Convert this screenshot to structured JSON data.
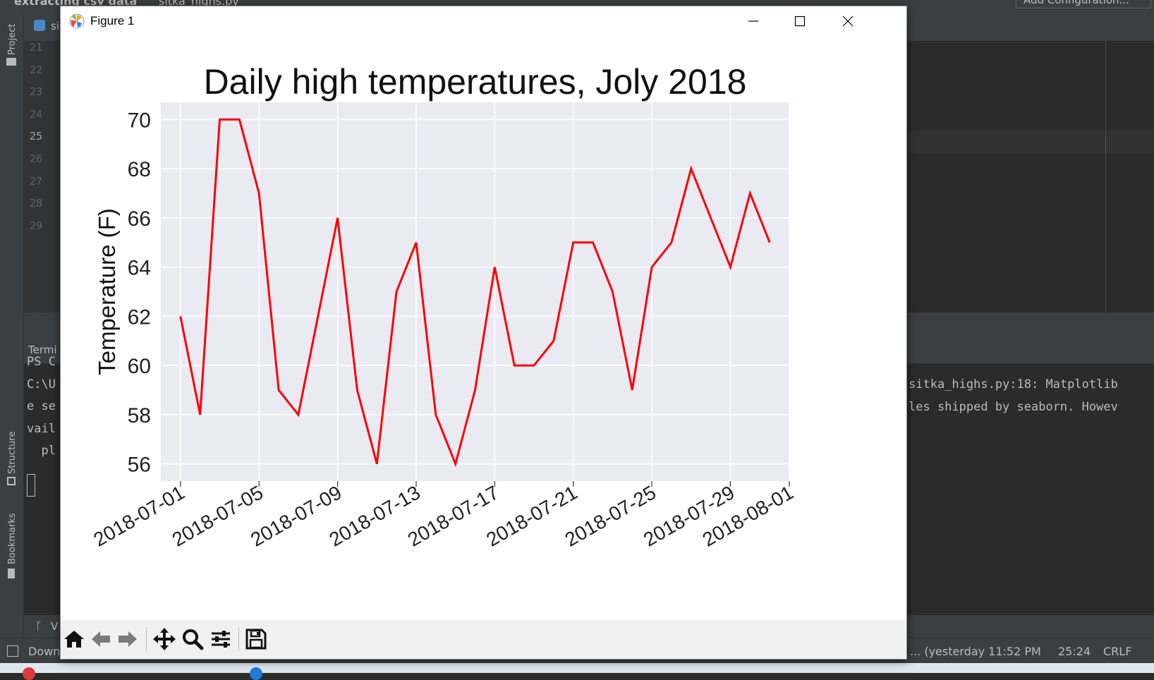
{
  "ide": {
    "breadcrumb_project": "extracting csv data",
    "breadcrumb_file": "sitka_highs.py",
    "run_config": "Add Configuration...",
    "tab_fragment": "si",
    "sidebar_project": "Project",
    "sidebar_structure": "Structure",
    "sidebar_bookmarks": "Bookmarks",
    "line_numbers": [
      "21",
      "22",
      "23",
      "24",
      "25",
      "26",
      "27",
      "28",
      "29"
    ],
    "terminal_tab": "Termi",
    "terminal_lines_left": [
      "PS C",
      "C:\\U",
      "e se",
      "vail",
      "  pl"
    ],
    "terminal_lines_right": [
      "sitka_highs.py:18: Matplotlib",
      "les shipped by seaborn. Howev"
    ],
    "bottom_tab_fragment": "V",
    "status_left": "Down",
    "status_commit": "... (yesterday 11:52 PM",
    "status_position": "25:24",
    "status_line_ending": "CRLF"
  },
  "window": {
    "title": "Figure 1"
  },
  "chart_data": {
    "type": "line",
    "title": "Daily high temperatures, Joly 2018",
    "xlabel": "",
    "ylabel": "Temperature (F)",
    "x": [
      "2018-07-01",
      "2018-07-02",
      "2018-07-03",
      "2018-07-04",
      "2018-07-05",
      "2018-07-06",
      "2018-07-07",
      "2018-07-08",
      "2018-07-09",
      "2018-07-10",
      "2018-07-11",
      "2018-07-12",
      "2018-07-13",
      "2018-07-14",
      "2018-07-15",
      "2018-07-16",
      "2018-07-17",
      "2018-07-18",
      "2018-07-19",
      "2018-07-20",
      "2018-07-21",
      "2018-07-22",
      "2018-07-23",
      "2018-07-24",
      "2018-07-25",
      "2018-07-26",
      "2018-07-27",
      "2018-07-28",
      "2018-07-29",
      "2018-07-30",
      "2018-07-31"
    ],
    "series": [
      {
        "values": [
          62,
          58,
          70,
          70,
          67,
          59,
          58,
          62,
          66,
          59,
          56,
          63,
          65,
          58,
          56,
          59,
          64,
          60,
          60,
          61,
          65,
          65,
          63,
          59,
          64,
          65,
          68,
          66,
          64,
          67,
          65
        ],
        "color": "#ff0000"
      }
    ],
    "x_tick_labels": [
      "2018-07-01",
      "2018-07-05",
      "2018-07-09",
      "2018-07-13",
      "2018-07-17",
      "2018-07-21",
      "2018-07-25",
      "2018-07-29",
      "2018-08-01"
    ],
    "y_ticks": [
      56,
      58,
      60,
      62,
      64,
      66,
      68,
      70
    ],
    "xlim": [
      "2018-06-30",
      "2018-08-01"
    ],
    "ylim": [
      55.3,
      70.7
    ],
    "grid": true,
    "axes_facecolor": "#eaeaf2",
    "grid_color": "#ffffff"
  }
}
